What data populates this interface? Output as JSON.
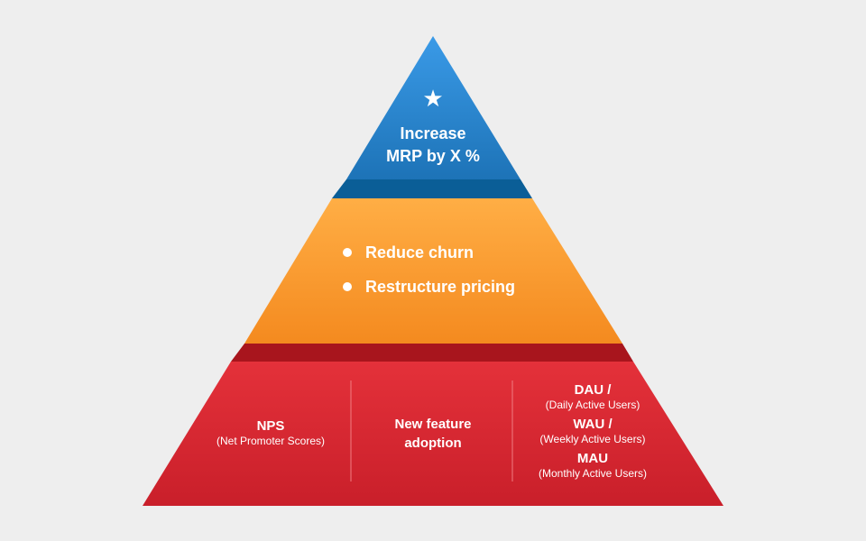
{
  "diagram": {
    "colors": {
      "background": "#eeeeee",
      "top_tier": "#1f7ac4",
      "middle_tier": "#f89a2f",
      "base_tier": "#dd2730",
      "text": "#ffffff"
    },
    "top_tier": {
      "icon": "star-icon",
      "title_lines": [
        "Increase",
        "MRP by X %"
      ]
    },
    "middle_tier": {
      "items": [
        "Reduce churn",
        "Restructure pricing"
      ]
    },
    "base_tier": {
      "nps": {
        "title": "NPS",
        "subtitle": "(Net Promoter Scores)"
      },
      "adoption": {
        "title_lines": [
          "New feature",
          "adoption"
        ]
      },
      "active_users": [
        {
          "title": "DAU /",
          "subtitle": "(Daily Active Users)"
        },
        {
          "title": "WAU /",
          "subtitle": "(Weekly Active Users)"
        },
        {
          "title": "MAU",
          "subtitle": "(Monthly Active Users)"
        }
      ]
    }
  }
}
